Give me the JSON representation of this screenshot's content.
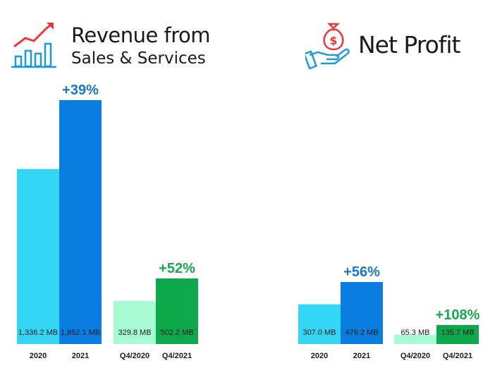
{
  "revenue": {
    "title_line1": "Revenue from",
    "title_line2": "Sales & Services",
    "icon": "growth-chart-icon"
  },
  "net_profit": {
    "title": "Net Profit",
    "icon": "money-bag-hand-icon"
  },
  "colors": {
    "light_blue": "#33d6f3",
    "dark_blue": "#0a7de0",
    "light_green": "#a6fbd3",
    "dark_green": "#0ca84b",
    "blue_text": "#1976c8",
    "green_text": "#17a84f",
    "icon_red": "#e8383a",
    "icon_blue": "#1d9bd8"
  },
  "chart_data": [
    {
      "type": "bar",
      "title": "Revenue from Sales & Services",
      "unit": "MB",
      "groups": [
        {
          "categories": [
            "2020",
            "2021"
          ],
          "values": [
            1336.2,
            1862.1
          ],
          "labels": [
            "1,336.2 MB",
            "1,862.1 MB"
          ],
          "change": "+39%"
        },
        {
          "categories": [
            "Q4/2020",
            "Q4/2021"
          ],
          "values": [
            329.8,
            502.2
          ],
          "labels": [
            "329.8 MB",
            "502.2 MB"
          ],
          "change": "+52%"
        }
      ]
    },
    {
      "type": "bar",
      "title": "Net Profit",
      "unit": "MB",
      "groups": [
        {
          "categories": [
            "2020",
            "2021"
          ],
          "values": [
            307.0,
            479.2
          ],
          "labels": [
            "307.0 MB",
            "479.2 MB"
          ],
          "change": "+56%"
        },
        {
          "categories": [
            "Q4/2020",
            "Q4/2021"
          ],
          "values": [
            65.3,
            135.7
          ],
          "labels": [
            "65.3 MB",
            "135.7 MB"
          ],
          "change": "+108%"
        }
      ]
    }
  ]
}
